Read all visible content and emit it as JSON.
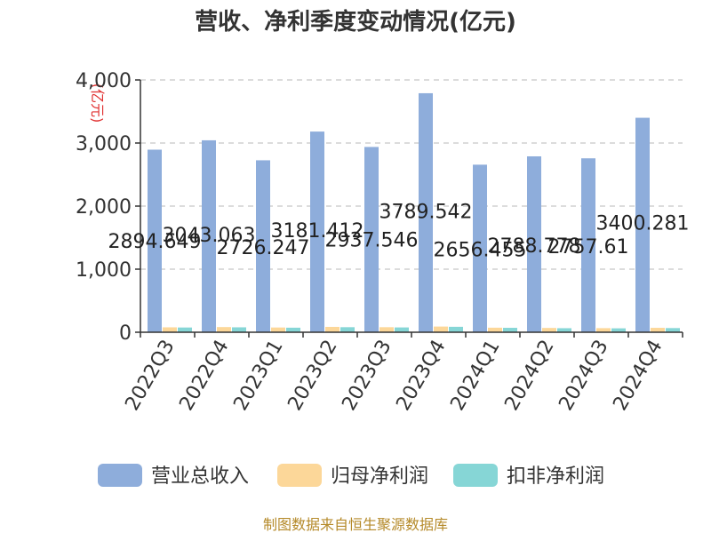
{
  "chart_data": {
    "type": "bar",
    "title": "营收、净利季度变动情况(亿元)",
    "ylabel": "(亿元)",
    "xlabel": "",
    "categories": [
      "2022Q3",
      "2022Q4",
      "2023Q1",
      "2023Q2",
      "2023Q3",
      "2023Q4",
      "2024Q1",
      "2024Q2",
      "2024Q3",
      "2024Q4"
    ],
    "ylim": [
      0,
      4000
    ],
    "yticks": [
      0,
      1000,
      2000,
      3000,
      4000
    ],
    "ytick_labels": [
      "0",
      "1,000",
      "2,000",
      "3,000",
      "4,000"
    ],
    "grid": true,
    "legend_position": "bottom",
    "series": [
      {
        "name": "营业总收入",
        "color": "#8eaddb",
        "values": [
          2894.649,
          3043.063,
          2726.247,
          3181.412,
          2937.546,
          3789.542,
          2656.455,
          2788.778,
          2757.61,
          3400.281
        ],
        "labels": [
          "2894.649",
          "3043.063",
          "2726.247",
          "3181.412",
          "2937.546",
          "3789.542",
          "2656.455",
          "2788.778",
          "2757.61",
          "3400.281"
        ]
      },
      {
        "name": "归母净利润",
        "color": "#fcd799",
        "values": [
          78,
          82,
          75,
          85,
          80,
          90,
          72,
          68,
          65,
          70
        ]
      },
      {
        "name": "扣非净利润",
        "color": "#86d6d6",
        "values": [
          75,
          78,
          72,
          80,
          76,
          86,
          70,
          64,
          62,
          66
        ]
      }
    ],
    "source": "制图数据来自恒生聚源数据库"
  }
}
